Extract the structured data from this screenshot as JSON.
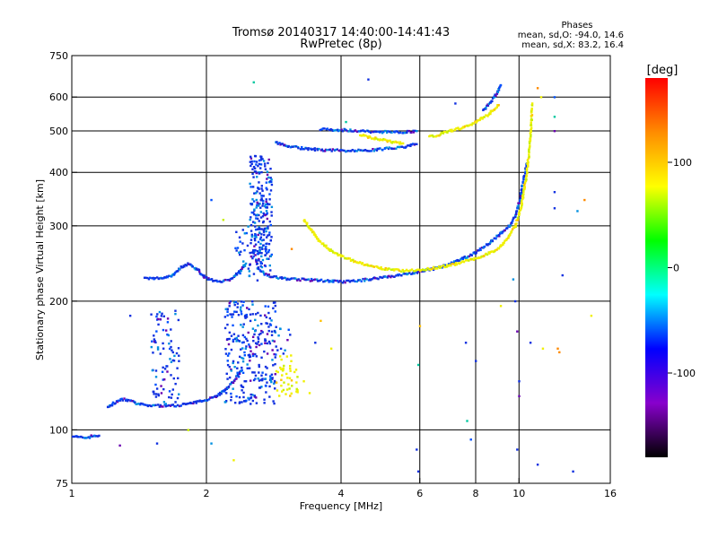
{
  "chart_data": {
    "type": "scatter",
    "title": "Tromsø 20140317 14:40:00-14:41:43",
    "subtitle": "RwPretec (8p)",
    "xlabel": "Frequency [MHz]",
    "ylabel": "Stationary phase Virtual Height [km]",
    "x_scale": "log",
    "y_scale": "log",
    "xlim": [
      1,
      16
    ],
    "ylim": [
      75,
      750
    ],
    "x_ticks": [
      1,
      2,
      4,
      6,
      8,
      10,
      16
    ],
    "y_ticks": [
      75,
      100,
      200,
      300,
      400,
      500,
      600,
      750
    ],
    "x_gridlines": [
      2,
      4,
      6,
      8,
      10
    ],
    "y_gridlines": [
      100,
      200,
      300,
      400,
      500,
      600
    ],
    "stats_title": "Phases",
    "stats": [
      "mean, sd,O: -94.0, 14.6",
      "mean, sd,X:  83.2, 16.4"
    ],
    "colorbar": {
      "label": "[deg]",
      "range": [
        -180,
        180
      ],
      "ticks": [
        100,
        0,
        -100
      ],
      "colors": [
        "#ff0000",
        "#ff8c00",
        "#ffff00",
        "#00ff00",
        "#00ffff",
        "#0000ff",
        "#8800cc",
        "#000000"
      ]
    },
    "traces": [
      {
        "x": [
          1.0,
          1.04,
          1.08,
          1.12,
          1.15
        ],
        "y": [
          97,
          96,
          96,
          97,
          97
        ],
        "phase": -100
      },
      {
        "x": [
          1.2,
          1.25,
          1.3,
          1.35,
          1.4,
          1.5,
          1.6,
          1.7,
          1.8,
          1.9,
          2.0,
          2.1,
          2.2,
          2.3,
          2.4
        ],
        "y": [
          113,
          116,
          118,
          117,
          115,
          114,
          114,
          114,
          115,
          116,
          118,
          120,
          124,
          130,
          138
        ],
        "phase": -100
      },
      {
        "x": [
          1.45,
          1.52,
          1.6,
          1.68,
          1.75,
          1.82,
          1.9,
          1.98,
          2.05,
          2.15,
          2.25,
          2.35,
          2.45
        ],
        "y": [
          226,
          226,
          227,
          230,
          240,
          245,
          238,
          228,
          224,
          223,
          224,
          232,
          245
        ],
        "phase": -100
      },
      {
        "x": [
          2.6,
          2.7,
          2.8,
          3.0,
          3.2,
          3.5,
          3.8,
          4.0,
          4.3,
          4.6,
          5.0,
          5.4,
          5.8,
          6.2,
          6.6,
          7.0,
          7.5,
          8.0,
          8.5,
          9.0,
          9.5,
          9.8,
          10.0,
          10.2,
          10.4
        ],
        "y": [
          240,
          232,
          228,
          226,
          225,
          224,
          223,
          222,
          223,
          225,
          228,
          230,
          233,
          236,
          240,
          244,
          252,
          260,
          272,
          285,
          300,
          315,
          340,
          380,
          420
        ],
        "phase": -100
      },
      {
        "x": [
          3.3,
          3.45,
          3.6,
          3.8,
          4.0,
          4.3,
          4.6,
          5.0,
          5.4,
          5.8,
          6.2,
          6.6,
          7.0,
          7.5,
          8.0,
          8.5,
          9.0,
          9.4,
          9.8,
          10.1,
          10.4,
          10.6,
          10.7
        ],
        "y": [
          310,
          290,
          275,
          262,
          255,
          248,
          242,
          238,
          236,
          236,
          238,
          240,
          243,
          247,
          252,
          258,
          266,
          280,
          300,
          330,
          400,
          480,
          580
        ],
        "phase": 100
      },
      {
        "x": [
          2.85,
          3.0,
          3.3,
          3.6,
          4.0,
          4.4,
          4.8,
          5.2,
          5.6,
          5.9
        ],
        "y": [
          472,
          462,
          455,
          452,
          450,
          450,
          452,
          456,
          460,
          466
        ],
        "phase": -100
      },
      {
        "x": [
          3.6,
          4.0,
          4.4,
          4.8,
          5.2,
          5.6,
          5.9
        ],
        "y": [
          505,
          503,
          500,
          498,
          497,
          498,
          500
        ],
        "phase": -100
      },
      {
        "x": [
          4.4,
          4.8,
          5.2,
          5.5
        ],
        "y": [
          490,
          480,
          472,
          468
        ],
        "phase": 100
      },
      {
        "x": [
          6.3,
          6.6,
          7.0,
          7.5,
          8.0,
          8.5,
          9.0
        ],
        "y": [
          485,
          490,
          500,
          510,
          525,
          545,
          575
        ],
        "phase": 100
      },
      {
        "x": [
          8.3,
          8.6,
          8.9,
          9.1
        ],
        "y": [
          560,
          580,
          610,
          640
        ],
        "phase": -100
      }
    ],
    "clusters": [
      {
        "x_range": [
          1.5,
          1.75
        ],
        "y_range": [
          115,
          190
        ],
        "count": 90,
        "phase": -100
      },
      {
        "x_range": [
          2.2,
          2.85
        ],
        "y_range": [
          115,
          200
        ],
        "count": 260,
        "phase": -100
      },
      {
        "x_range": [
          2.5,
          2.8
        ],
        "y_range": [
          240,
          440
        ],
        "count": 220,
        "phase": -100
      },
      {
        "x_range": [
          2.3,
          2.8
        ],
        "y_range": [
          220,
          300
        ],
        "count": 60,
        "phase": -100
      },
      {
        "x_range": [
          2.85,
          3.2
        ],
        "y_range": [
          120,
          150
        ],
        "count": 45,
        "phase": 100
      },
      {
        "x_range": [
          2.7,
          3.1
        ],
        "y_range": [
          150,
          175
        ],
        "count": 25,
        "phase": -100
      }
    ],
    "scatter_points": [
      {
        "x": 1.28,
        "y": 92,
        "phase": -100
      },
      {
        "x": 1.55,
        "y": 93,
        "phase": -100
      },
      {
        "x": 1.35,
        "y": 185,
        "phase": -100
      },
      {
        "x": 1.82,
        "y": 100,
        "phase": 100
      },
      {
        "x": 2.05,
        "y": 93,
        "phase": -100
      },
      {
        "x": 2.05,
        "y": 345,
        "phase": -100
      },
      {
        "x": 2.18,
        "y": 310,
        "phase": 100
      },
      {
        "x": 2.55,
        "y": 650,
        "phase": 0
      },
      {
        "x": 3.1,
        "y": 265,
        "phase": 150
      },
      {
        "x": 3.6,
        "y": 180,
        "phase": 100
      },
      {
        "x": 3.5,
        "y": 160,
        "phase": -100
      },
      {
        "x": 3.8,
        "y": 155,
        "phase": 100
      },
      {
        "x": 4.6,
        "y": 660,
        "phase": -100
      },
      {
        "x": 4.1,
        "y": 525,
        "phase": 0
      },
      {
        "x": 5.9,
        "y": 90,
        "phase": -100
      },
      {
        "x": 5.95,
        "y": 80,
        "phase": -100
      },
      {
        "x": 6.0,
        "y": 175,
        "phase": 100
      },
      {
        "x": 5.95,
        "y": 142,
        "phase": 0
      },
      {
        "x": 7.2,
        "y": 580,
        "phase": -100
      },
      {
        "x": 7.6,
        "y": 160,
        "phase": -100
      },
      {
        "x": 7.65,
        "y": 105,
        "phase": 0
      },
      {
        "x": 7.8,
        "y": 95,
        "phase": -100
      },
      {
        "x": 8.0,
        "y": 145,
        "phase": -100
      },
      {
        "x": 9.1,
        "y": 195,
        "phase": 100
      },
      {
        "x": 9.7,
        "y": 225,
        "phase": -100
      },
      {
        "x": 9.8,
        "y": 200,
        "phase": -100
      },
      {
        "x": 9.9,
        "y": 170,
        "phase": -100
      },
      {
        "x": 10.0,
        "y": 130,
        "phase": -100
      },
      {
        "x": 10.0,
        "y": 120,
        "phase": -100
      },
      {
        "x": 9.9,
        "y": 90,
        "phase": -100
      },
      {
        "x": 10.6,
        "y": 160,
        "phase": -100
      },
      {
        "x": 11.0,
        "y": 83,
        "phase": -100
      },
      {
        "x": 11.3,
        "y": 155,
        "phase": 100
      },
      {
        "x": 12.0,
        "y": 600,
        "phase": -100
      },
      {
        "x": 12.0,
        "y": 540,
        "phase": 0
      },
      {
        "x": 12.0,
        "y": 500,
        "phase": -100
      },
      {
        "x": 12.0,
        "y": 360,
        "phase": -100
      },
      {
        "x": 12.0,
        "y": 330,
        "phase": -100
      },
      {
        "x": 12.2,
        "y": 155,
        "phase": 150
      },
      {
        "x": 12.3,
        "y": 152,
        "phase": 150
      },
      {
        "x": 12.5,
        "y": 230,
        "phase": -100
      },
      {
        "x": 13.2,
        "y": 80,
        "phase": -100
      },
      {
        "x": 13.5,
        "y": 325,
        "phase": -100
      },
      {
        "x": 14.0,
        "y": 345,
        "phase": 150
      },
      {
        "x": 14.5,
        "y": 185,
        "phase": 100
      },
      {
        "x": 11.0,
        "y": 630,
        "phase": 150
      },
      {
        "x": 11.2,
        "y": 600,
        "phase": 100
      },
      {
        "x": 2.3,
        "y": 85,
        "phase": 100
      },
      {
        "x": 3.3,
        "y": 130,
        "phase": 100
      },
      {
        "x": 3.4,
        "y": 122,
        "phase": 100
      }
    ]
  }
}
